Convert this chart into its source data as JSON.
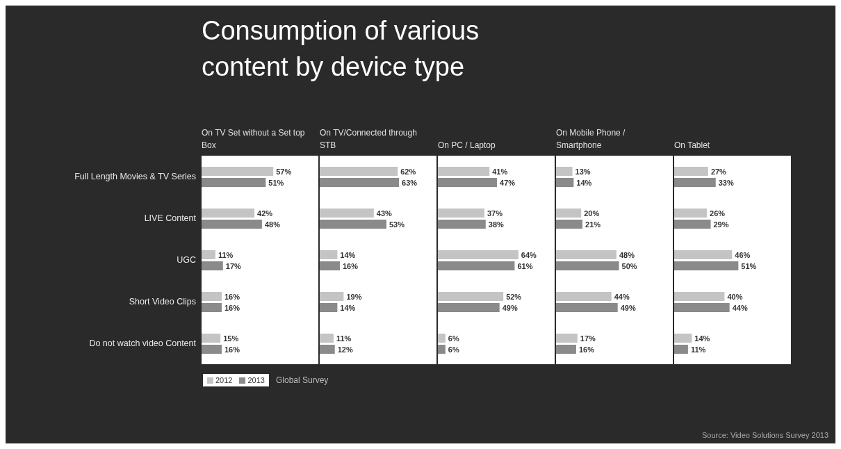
{
  "chart_data": [
    {
      "type": "bar",
      "orientation": "horizontal",
      "title": "Consumption of various content by device type",
      "subtitle": "On TV Set without a Set top Box",
      "categories": [
        "Full Length Movies & TV Series",
        "LIVE Content",
        "UGC",
        "Short Video Clips",
        "Do not watch video Content"
      ],
      "tick_labels": "y",
      "legend": "bottom",
      "annotations": [
        "Global Survey",
        "Source: Video Solutions Survey 2013"
      ],
      "series": [
        {
          "name": "2012",
          "color": "#c4c4c4",
          "values": [
            57,
            42,
            11,
            16,
            15
          ],
          "value_labels": [
            "57%",
            "42%",
            "11%",
            "16%",
            "15%"
          ]
        },
        {
          "name": "2013",
          "color": "#8a8a8a",
          "values": [
            51,
            48,
            17,
            16,
            16
          ],
          "value_labels": [
            "51%",
            "48%",
            "17%",
            "16%",
            "16%"
          ]
        }
      ]
    },
    {
      "type": "bar",
      "orientation": "horizontal",
      "subtitle": "On TV/Connected through STB",
      "categories": [
        null,
        null,
        null,
        null,
        null
      ],
      "tick_labels": false,
      "series": [
        {
          "color": "#c4c4c4",
          "values": [
            62,
            43,
            14,
            19,
            11
          ],
          "value_labels": [
            "62%",
            "43%",
            "14%",
            "19%",
            "11%"
          ]
        },
        {
          "color": "#8a8a8a",
          "values": [
            63,
            53,
            16,
            14,
            12
          ],
          "value_labels": [
            "63%",
            "53%",
            "16%",
            "14%",
            "12%"
          ]
        }
      ]
    },
    {
      "type": "bar",
      "orientation": "horizontal",
      "subtitle": "On PC / Laptop",
      "categories": [
        null,
        null,
        null,
        null,
        null
      ],
      "tick_labels": false,
      "series": [
        {
          "color": "#c4c4c4",
          "values": [
            41,
            37,
            64,
            52,
            6
          ],
          "value_labels": [
            "41%",
            "37%",
            "64%",
            "52%",
            "6%"
          ]
        },
        {
          "color": "#8a8a8a",
          "values": [
            47,
            38,
            61,
            49,
            6
          ],
          "value_labels": [
            "47%",
            "38%",
            "61%",
            "49%",
            "6%"
          ]
        }
      ]
    },
    {
      "type": "bar",
      "orientation": "horizontal",
      "subtitle": "On Mobile Phone / Smartphone",
      "categories": [
        null,
        null,
        null,
        null,
        null
      ],
      "tick_labels": false,
      "series": [
        {
          "color": "#c4c4c4",
          "values": [
            13,
            20,
            48,
            44,
            17
          ],
          "value_labels": [
            "13%",
            "20%",
            "48%",
            "44%",
            "17%"
          ]
        },
        {
          "color": "#8a8a8a",
          "values": [
            14,
            21,
            50,
            49,
            16
          ],
          "value_labels": [
            "14%",
            "21%",
            "50%",
            "49%",
            "16%"
          ]
        }
      ]
    },
    {
      "type": "bar",
      "orientation": "horizontal",
      "subtitle": "On Tablet",
      "categories": [
        null,
        null,
        null,
        null,
        null
      ],
      "tick_labels": false,
      "series": [
        {
          "color": "#c4c4c4",
          "values": [
            27,
            26,
            46,
            40,
            14
          ],
          "value_labels": [
            "27%",
            "26%",
            "46%",
            "40%",
            "14%"
          ]
        },
        {
          "color": "#8a8a8a",
          "values": [
            33,
            29,
            51,
            44,
            11
          ],
          "value_labels": [
            "33%",
            "29%",
            "51%",
            "44%",
            "11%"
          ]
        }
      ]
    }
  ]
}
